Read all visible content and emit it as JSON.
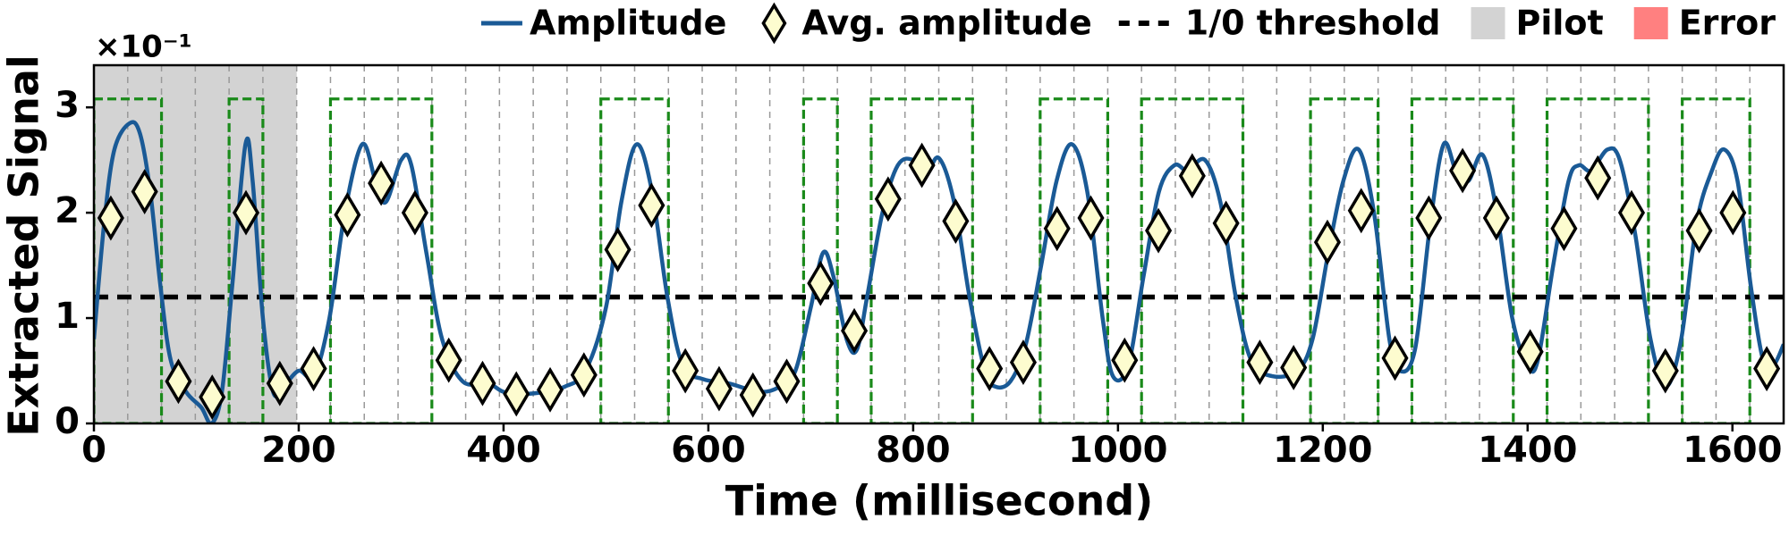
{
  "chart_data": {
    "type": "line",
    "xlabel": "Time (millisecond)",
    "ylabel": "Extracted Signal",
    "y_offset_label": "×10⁻¹",
    "xlim": [
      0,
      1650
    ],
    "ylim": [
      0,
      3.4
    ],
    "xticks": [
      0,
      200,
      400,
      600,
      800,
      1000,
      1200,
      1400,
      1600
    ],
    "yticks": [
      0,
      1,
      2,
      3
    ],
    "slot_width": 33,
    "bit_one_color": "#1a8a1a",
    "bit_one_level": 3.08,
    "bit_one_intervals": [
      [
        0,
        66
      ],
      [
        132,
        165
      ],
      [
        231,
        330
      ],
      [
        495,
        561
      ],
      [
        693,
        726
      ],
      [
        759,
        858
      ],
      [
        924,
        990
      ],
      [
        1023,
        1122
      ],
      [
        1188,
        1254
      ],
      [
        1287,
        1386
      ],
      [
        1419,
        1518
      ],
      [
        1551,
        1617
      ]
    ],
    "series": [
      {
        "name": "Amplitude",
        "type": "line",
        "color": "#1a5a96",
        "x": [
          0,
          10,
          20,
          35,
          45,
          55,
          65,
          75,
          90,
          105,
          115,
          125,
          135,
          148,
          155,
          165,
          175,
          185,
          200,
          215,
          230,
          245,
          262,
          275,
          285,
          300,
          310,
          325,
          340,
          360,
          385,
          400,
          420,
          440,
          460,
          480,
          500,
          515,
          530,
          545,
          560,
          575,
          595,
          620,
          650,
          670,
          685,
          700,
          712,
          722,
          735,
          745,
          755,
          770,
          785,
          800,
          812,
          825,
          840,
          855,
          870,
          880,
          895,
          910,
          925,
          940,
          955,
          970,
          985,
          995,
          1010,
          1025,
          1040,
          1055,
          1068,
          1085,
          1100,
          1115,
          1130,
          1150,
          1175,
          1190,
          1205,
          1220,
          1235,
          1250,
          1265,
          1275,
          1290,
          1305,
          1318,
          1330,
          1342,
          1356,
          1370,
          1385,
          1400,
          1410,
          1425,
          1440,
          1450,
          1462,
          1478,
          1490,
          1505,
          1520,
          1535,
          1550,
          1565,
          1580,
          1592,
          1605,
          1618,
          1630,
          1640,
          1650
        ],
        "values": [
          0.8,
          1.9,
          2.6,
          2.85,
          2.75,
          2.2,
          1.3,
          0.6,
          0.3,
          0.15,
          0,
          0.3,
          1.3,
          2.65,
          2.3,
          1.0,
          0.3,
          0.35,
          0.5,
          0.45,
          1.0,
          2.0,
          2.65,
          2.3,
          2.1,
          2.5,
          2.45,
          1.6,
          0.8,
          0.4,
          0.38,
          0.3,
          0.28,
          0.3,
          0.35,
          0.5,
          1.1,
          2.1,
          2.65,
          2.2,
          1.2,
          0.55,
          0.42,
          0.38,
          0.3,
          0.35,
          0.5,
          1.1,
          1.62,
          1.4,
          0.8,
          0.7,
          1.2,
          2.0,
          2.45,
          2.5,
          2.35,
          2.52,
          2.1,
          1.2,
          0.5,
          0.35,
          0.4,
          0.75,
          1.5,
          2.3,
          2.65,
          2.2,
          1.0,
          0.45,
          0.55,
          1.4,
          2.2,
          2.45,
          2.4,
          2.5,
          2.1,
          1.2,
          0.6,
          0.45,
          0.5,
          0.8,
          1.6,
          2.3,
          2.6,
          2.0,
          0.8,
          0.5,
          0.7,
          1.9,
          2.65,
          2.4,
          2.3,
          2.55,
          2.0,
          1.0,
          0.55,
          0.6,
          1.5,
          2.3,
          2.45,
          2.4,
          2.6,
          2.5,
          1.8,
          0.8,
          0.35,
          0.8,
          1.9,
          2.4,
          2.6,
          2.3,
          1.3,
          0.6,
          0.55,
          0.75
        ]
      },
      {
        "name": "Avg. amplitude",
        "type": "scatter",
        "color": "#fdfccf",
        "x": [
          16.5,
          49.5,
          82.5,
          115.5,
          148.5,
          181.5,
          214.5,
          247.5,
          280.5,
          313.5,
          346.5,
          379.5,
          412.5,
          445.5,
          478.5,
          511.5,
          544.5,
          577.5,
          610.5,
          643.5,
          676.5,
          709.5,
          742.5,
          775.5,
          808.5,
          841.5,
          874.5,
          907.5,
          940.5,
          973.5,
          1006.5,
          1039.5,
          1072.5,
          1105.5,
          1138.5,
          1171.5,
          1204.5,
          1237.5,
          1270.5,
          1303.5,
          1336.5,
          1369.5,
          1402.5,
          1435.5,
          1468.5,
          1501.5,
          1534.5,
          1567.5,
          1600.5,
          1633.5
        ],
        "values": [
          1.95,
          2.2,
          0.4,
          0.25,
          2.0,
          0.38,
          0.52,
          1.98,
          2.28,
          2.0,
          0.6,
          0.38,
          0.28,
          0.32,
          0.46,
          1.65,
          2.07,
          0.5,
          0.33,
          0.27,
          0.4,
          1.33,
          0.88,
          2.13,
          2.45,
          1.92,
          0.52,
          0.58,
          1.85,
          1.95,
          0.6,
          1.83,
          2.35,
          1.9,
          0.58,
          0.53,
          1.72,
          2.02,
          0.62,
          1.95,
          2.4,
          1.95,
          0.68,
          1.85,
          2.33,
          2.0,
          0.5,
          1.83,
          2.0,
          0.52
        ]
      }
    ],
    "threshold": {
      "name": "1/0 threshold",
      "value": 1.2,
      "color": "#000000"
    },
    "regions": [
      {
        "name": "Pilot",
        "color": "#d3d3d3",
        "x": [
          0,
          198
        ]
      },
      {
        "name": "Error",
        "color": "#ff8080"
      }
    ]
  }
}
